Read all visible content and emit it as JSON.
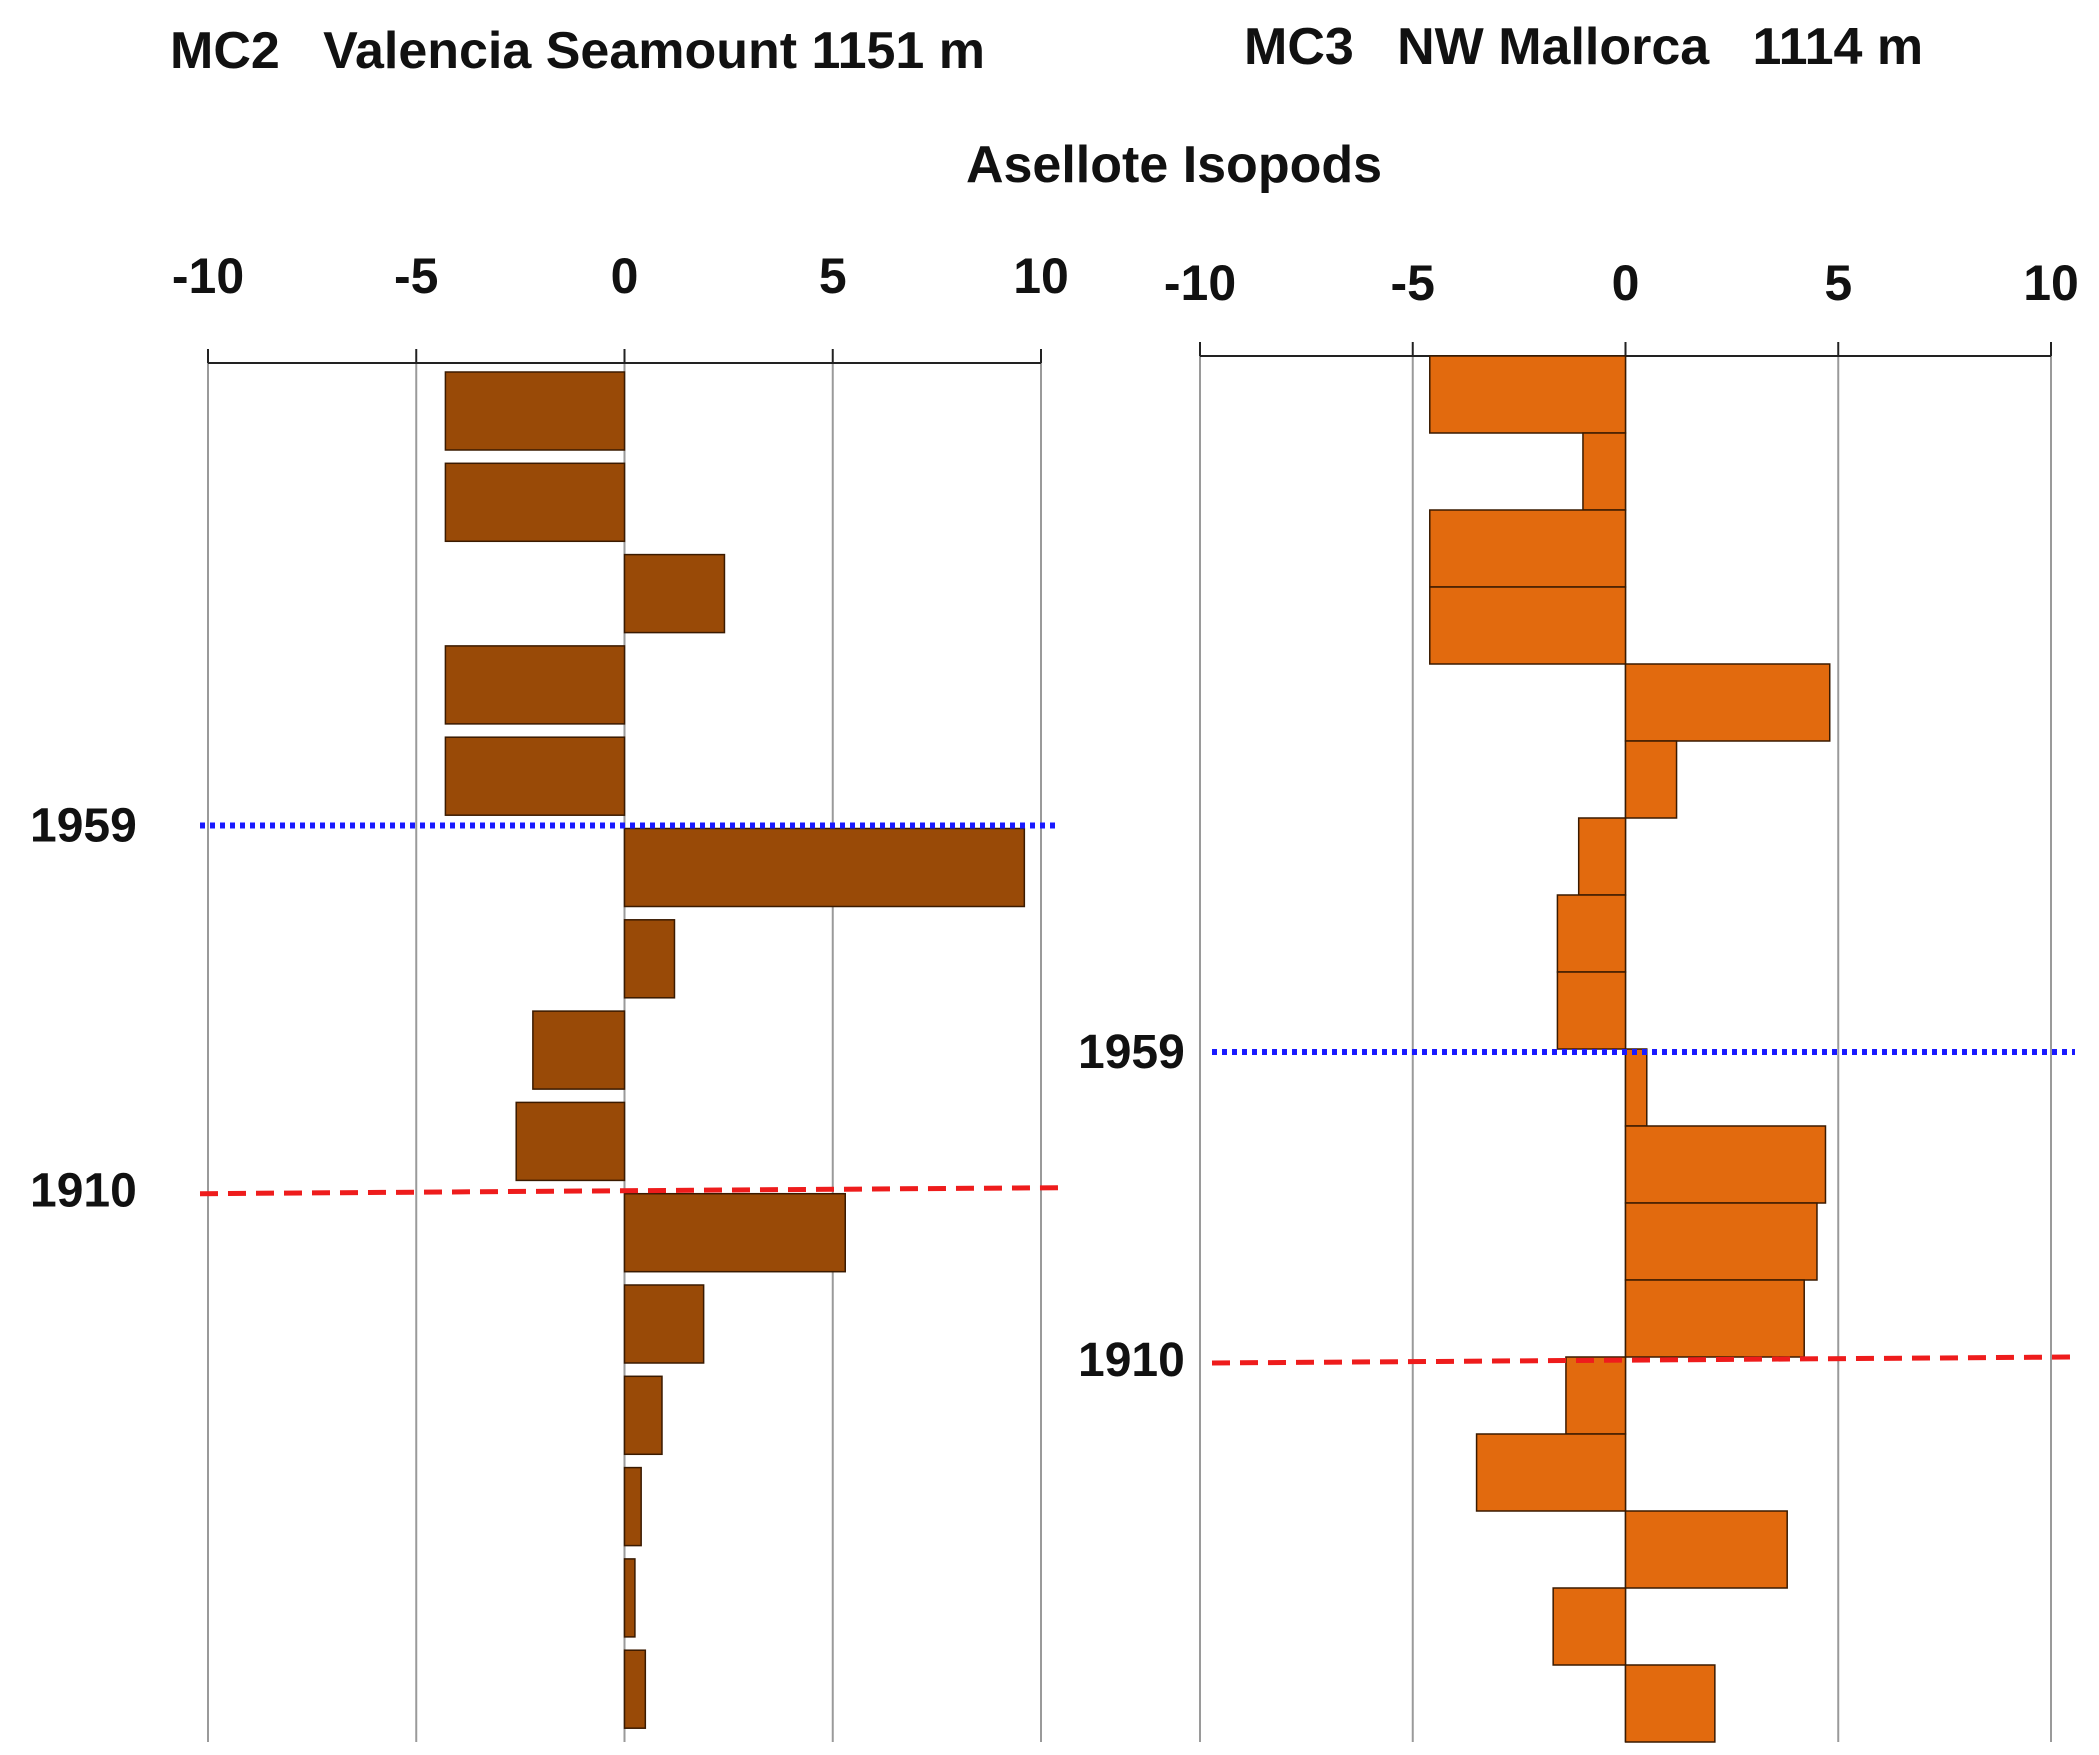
{
  "figure_title": "Asellote Isopods",
  "chart_data": [
    {
      "type": "bar",
      "orientation": "horizontal",
      "title": "MC2   Valencia Seamount 1151 m",
      "xlim": [
        -10,
        10
      ],
      "xticks": [
        "-10",
        "-5",
        "0",
        "5",
        "10"
      ],
      "bar_color": "#994a07",
      "values": [
        -4.3,
        -4.3,
        2.4,
        -4.3,
        -4.3,
        9.6,
        1.2,
        -2.2,
        -2.6,
        5.3,
        1.9,
        0.9,
        0.4,
        0.25,
        0.5
      ],
      "markers": [
        {
          "label": "1959",
          "after_bar": 5,
          "color": "#1a1aff",
          "style": "dotted"
        },
        {
          "label": "1910",
          "after_bar": 9,
          "color": "#ee1c1c",
          "style": "dashed"
        }
      ]
    },
    {
      "type": "bar",
      "orientation": "horizontal",
      "title": "MC3   NW Mallorca   1114 m",
      "xlim": [
        -10,
        10
      ],
      "xticks": [
        "-10",
        "-5",
        "0",
        "5",
        "10"
      ],
      "bar_color": "#e26a0e",
      "values": [
        -4.6,
        -1.0,
        -4.6,
        -4.6,
        4.8,
        1.2,
        -1.1,
        -1.6,
        -1.6,
        0.5,
        4.7,
        4.5,
        4.2,
        -1.4,
        -3.5,
        3.8,
        -1.7,
        2.1
      ],
      "markers": [
        {
          "label": "1959",
          "after_bar": 9,
          "color": "#1a1aff",
          "style": "dotted"
        },
        {
          "label": "1910",
          "after_bar": 13,
          "color": "#ee1c1c",
          "style": "dashed"
        }
      ]
    }
  ]
}
